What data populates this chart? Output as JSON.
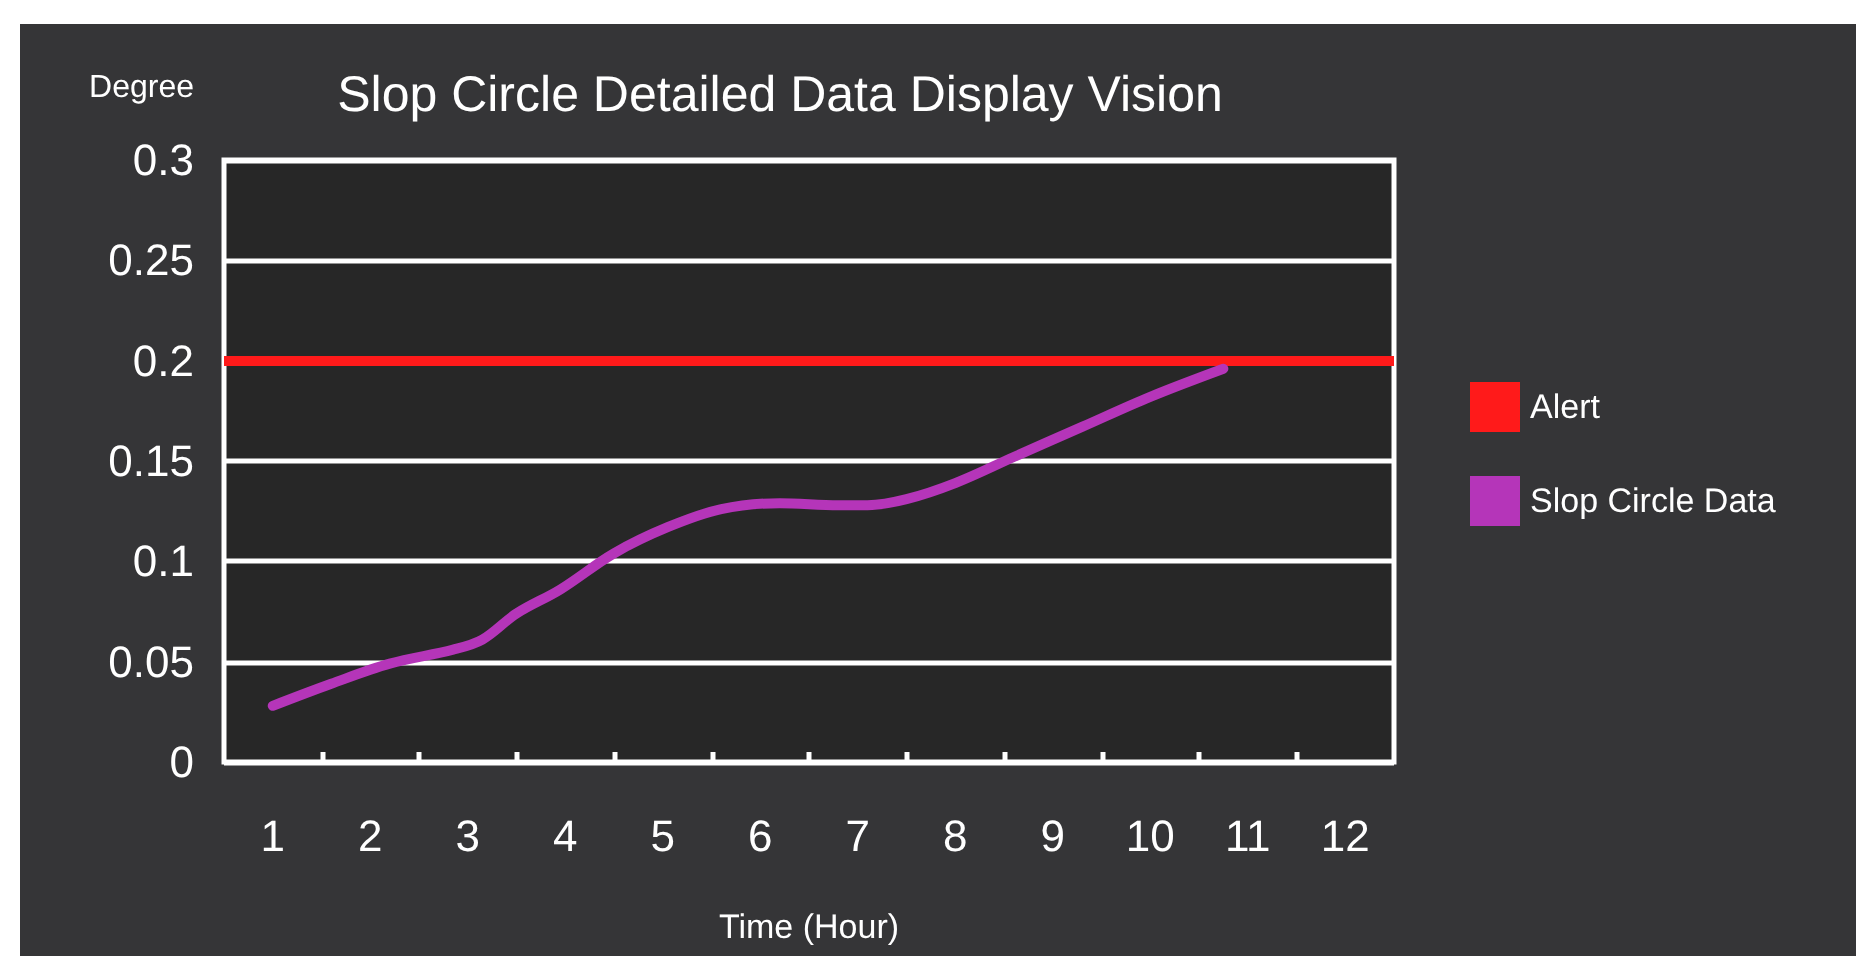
{
  "chart_data": {
    "type": "line",
    "title": "Slop Circle Detailed Data Display Vision",
    "xlabel": "Time (Hour)",
    "ylabel": "Degree",
    "series": [
      {
        "name": "Slop Circle Data",
        "color": "#b535b9",
        "x": [
          1.0,
          1.6,
          2.2,
          2.85,
          3.15,
          3.5,
          3.95,
          4.5,
          5.05,
          5.6,
          6.2,
          6.8,
          7.1,
          7.5,
          8.0,
          8.6,
          9.3,
          10.0,
          10.75
        ],
        "values": [
          0.028,
          0.039,
          0.049,
          0.056,
          0.061,
          0.074,
          0.086,
          0.104,
          0.117,
          0.126,
          0.129,
          0.128,
          0.128,
          0.131,
          0.139,
          0.152,
          0.167,
          0.182,
          0.196
        ]
      }
    ],
    "xlim": [
      0.5,
      12.5
    ],
    "xticks": [
      1,
      2,
      3,
      4,
      5,
      6,
      7,
      8,
      9,
      10,
      11,
      12,
      {
        "value": 1.5,
        "label": null
      },
      {
        "value": 2.5,
        "label": null
      },
      {
        "value": 3.5,
        "label": null
      },
      {
        "value": 4.5,
        "label": null
      },
      {
        "value": 5.5,
        "label": null
      },
      {
        "value": 6.5,
        "label": null
      },
      {
        "value": 7.5,
        "label": null
      },
      {
        "value": 8.5,
        "label": null
      },
      {
        "value": 9.5,
        "label": null
      },
      {
        "value": 10.5,
        "label": null
      },
      {
        "value": 11.5,
        "label": null
      }
    ],
    "ylim": [
      0,
      0.3
    ],
    "yticks": [
      0,
      0.05,
      0.1,
      0.15,
      0.2,
      0.25,
      0.3
    ],
    "ref_lines": [
      {
        "axis": "y",
        "value": 0.2,
        "label": "Alert",
        "color": "#ff1a1a"
      }
    ],
    "grid": "y",
    "legend": "right",
    "marker": "none"
  }
}
